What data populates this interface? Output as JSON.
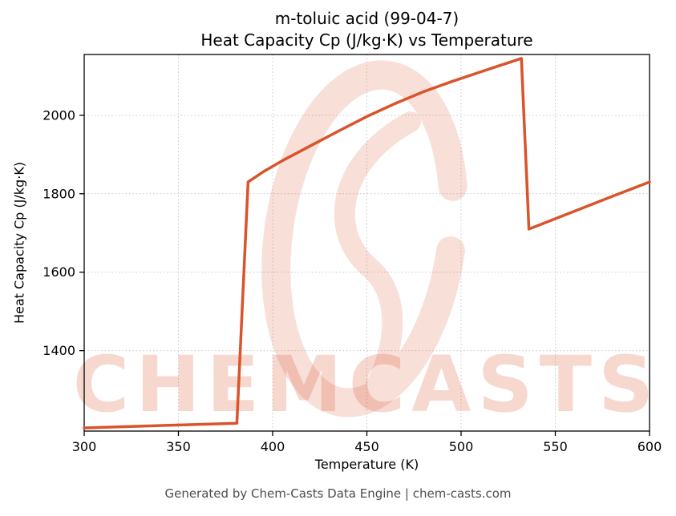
{
  "page": {
    "background": "#ffffff"
  },
  "footer": {
    "text": "Generated by Chem-Casts Data Engine | chem-casts.com"
  },
  "watermark": {
    "text": "CHEMCASTS",
    "color": "#d9532b"
  },
  "chart_data": {
    "type": "line",
    "title": "m-toluic acid (99-04-7)",
    "subtitle": "Heat Capacity Cp (J/kg·K) vs Temperature",
    "xlabel": "Temperature (K)",
    "ylabel": "Heat Capacity Cp (J/kg·K)",
    "xlim": [
      300,
      600
    ],
    "ylim": [
      1195,
      2155
    ],
    "xticks": [
      300,
      350,
      400,
      450,
      500,
      550,
      600
    ],
    "yticks": [
      1400,
      1600,
      1800,
      2000
    ],
    "grid": true,
    "grid_style": "dotted",
    "legend": "none",
    "line_color": "#d9532b",
    "line_width": 3.5,
    "series": [
      {
        "name": "Heat Capacity Cp (J/kg·K)",
        "color": "#d9532b",
        "points": [
          [
            300,
            1203
          ],
          [
            320,
            1206
          ],
          [
            340,
            1209
          ],
          [
            360,
            1212
          ],
          [
            381,
            1215
          ],
          [
            387,
            1830
          ],
          [
            395,
            1856
          ],
          [
            405,
            1884
          ],
          [
            420,
            1922
          ],
          [
            435,
            1960
          ],
          [
            450,
            1997
          ],
          [
            465,
            2030
          ],
          [
            480,
            2060
          ],
          [
            495,
            2086
          ],
          [
            510,
            2110
          ],
          [
            520,
            2126
          ],
          [
            527,
            2137
          ],
          [
            532,
            2145
          ],
          [
            536,
            1710
          ],
          [
            560,
            1755
          ],
          [
            580,
            1793
          ],
          [
            600,
            1830
          ]
        ]
      }
    ]
  }
}
